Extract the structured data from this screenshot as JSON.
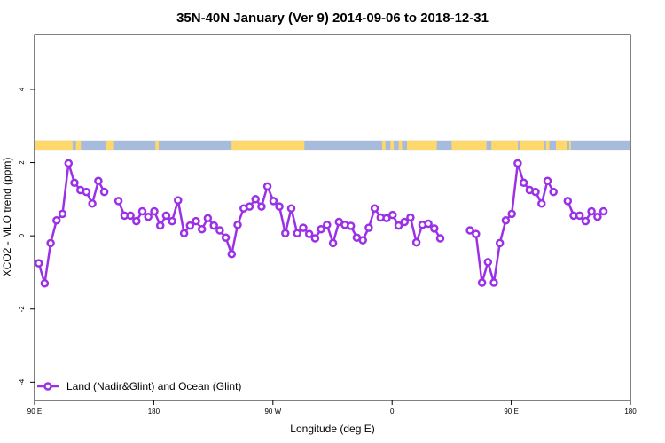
{
  "chart_data": {
    "type": "line",
    "title": "35N-40N January (Ver 9)   2014-09-06 to 2018-12-31",
    "xlabel": "Longitude (deg E)",
    "ylabel": "XCO2 - MLO trend (ppm)",
    "xlim": [
      90,
      450
    ],
    "ylim": [
      -4.5,
      5.5
    ],
    "x_ticks": [
      90,
      162,
      234,
      306,
      378,
      450
    ],
    "x_tick_labels": [
      "90 E",
      "180",
      "90 W",
      "0",
      "90 E",
      "180"
    ],
    "y_ticks": [
      -4,
      -2,
      0,
      2,
      4
    ],
    "y_tick_labels": [
      "-4",
      "-2",
      "0",
      "2",
      "4"
    ],
    "grid": false,
    "legend_position": "bottom-left",
    "colors": {
      "series": "#9b30e6",
      "land": "#ffd86b",
      "ocean": "#a7bcdc"
    },
    "land_ocean_strip": {
      "y_range": [
        2.35,
        2.6
      ],
      "land_spans": [
        [
          90,
          113
        ],
        [
          115,
          118
        ],
        [
          133,
          138
        ],
        [
          163,
          165
        ],
        [
          209,
          253
        ],
        [
          300,
          302
        ],
        [
          305,
          307
        ],
        [
          310,
          312
        ],
        [
          315,
          333
        ],
        [
          342,
          363
        ],
        [
          366,
          382
        ],
        [
          383,
          398
        ],
        [
          399,
          401
        ],
        [
          405,
          412
        ],
        [
          413,
          414
        ]
      ]
    },
    "series": [
      {
        "name": "Land (Nadir&Glint) and Ocean (Glint)",
        "segments": [
          [
            [
              92.5,
              -0.75
            ],
            [
              96.1,
              -1.3
            ],
            [
              99.7,
              -0.2
            ],
            [
              103.3,
              0.42
            ],
            [
              106.9,
              0.6
            ],
            [
              110.5,
              1.98
            ],
            [
              114.1,
              1.45
            ],
            [
              117.7,
              1.25
            ],
            [
              121.3,
              1.2
            ],
            [
              124.9,
              0.88
            ],
            [
              128.5,
              1.5
            ],
            [
              132.1,
              1.2
            ]
          ],
          [
            [
              140.7,
              0.95
            ],
            [
              144.3,
              0.55
            ],
            [
              147.9,
              0.55
            ],
            [
              151.5,
              0.4
            ],
            [
              155.1,
              0.67
            ],
            [
              158.7,
              0.52
            ],
            [
              162.3,
              0.67
            ],
            [
              165.9,
              0.28
            ],
            [
              169.5,
              0.55
            ],
            [
              173.1,
              0.4
            ],
            [
              176.7,
              0.97
            ],
            [
              180.3,
              0.07
            ],
            [
              183.9,
              0.28
            ],
            [
              187.5,
              0.4
            ],
            [
              191.1,
              0.18
            ],
            [
              194.7,
              0.48
            ],
            [
              198.3,
              0.28
            ],
            [
              201.9,
              0.15
            ],
            [
              205.5,
              -0.05
            ],
            [
              209.1,
              -0.5
            ],
            [
              212.7,
              0.3
            ],
            [
              216.3,
              0.75
            ],
            [
              219.9,
              0.8
            ],
            [
              223.5,
              1.0
            ],
            [
              227.1,
              0.8
            ],
            [
              230.7,
              1.35
            ],
            [
              234.3,
              0.95
            ],
            [
              237.9,
              0.8
            ],
            [
              241.5,
              0.07
            ],
            [
              245.1,
              0.75
            ],
            [
              248.7,
              0.07
            ],
            [
              252.3,
              0.22
            ],
            [
              255.9,
              0.05
            ],
            [
              259.5,
              -0.07
            ],
            [
              263.1,
              0.18
            ],
            [
              266.7,
              0.3
            ],
            [
              270.3,
              -0.2
            ],
            [
              273.9,
              0.38
            ],
            [
              277.5,
              0.3
            ],
            [
              281.1,
              0.27
            ],
            [
              284.7,
              -0.05
            ],
            [
              288.3,
              -0.12
            ],
            [
              291.9,
              0.22
            ],
            [
              295.5,
              0.75
            ],
            [
              299.1,
              0.5
            ],
            [
              302.7,
              0.48
            ],
            [
              306.3,
              0.57
            ],
            [
              309.9,
              0.28
            ],
            [
              313.5,
              0.38
            ],
            [
              317.1,
              0.5
            ],
            [
              320.7,
              -0.18
            ],
            [
              324.3,
              0.3
            ],
            [
              327.9,
              0.33
            ],
            [
              331.5,
              0.2
            ],
            [
              335.1,
              -0.07
            ]
          ],
          [
            [
              353.1,
              0.15
            ],
            [
              356.7,
              0.05
            ],
            [
              360.3,
              -1.28
            ],
            [
              363.9,
              -0.72
            ],
            [
              367.5,
              -1.28
            ],
            [
              371.1,
              -0.2
            ],
            [
              374.7,
              0.42
            ],
            [
              378.3,
              0.6
            ],
            [
              381.9,
              1.98
            ],
            [
              385.5,
              1.45
            ],
            [
              389.1,
              1.25
            ],
            [
              392.7,
              1.2
            ],
            [
              396.3,
              0.88
            ],
            [
              399.9,
              1.5
            ],
            [
              403.5,
              1.2
            ]
          ],
          [
            [
              412.1,
              0.95
            ],
            [
              415.7,
              0.55
            ],
            [
              419.3,
              0.55
            ],
            [
              422.9,
              0.4
            ],
            [
              426.5,
              0.67
            ],
            [
              430.1,
              0.52
            ],
            [
              433.7,
              0.67
            ]
          ]
        ]
      }
    ]
  }
}
